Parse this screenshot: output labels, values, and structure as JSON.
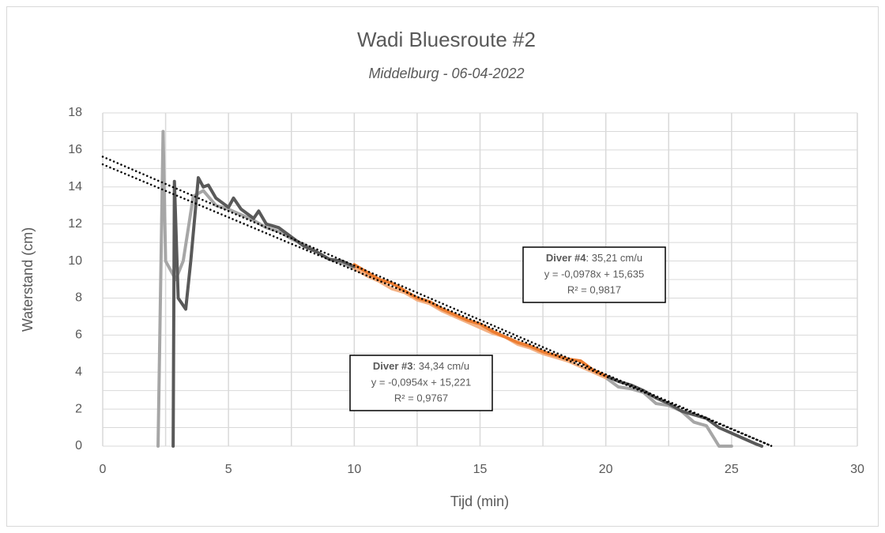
{
  "chart_data": {
    "type": "line",
    "title": "Wadi Bluesroute #2",
    "subtitle": "Middelburg - 06-04-2022",
    "x_label": "Tijd (min)",
    "y_label": "Waterstand (cm)",
    "xlim": [
      0,
      30
    ],
    "xticks": [
      0,
      5,
      10,
      15,
      20,
      25,
      30
    ],
    "ylim": [
      0,
      18
    ],
    "yticks": [
      0,
      2,
      4,
      6,
      8,
      10,
      12,
      14,
      16,
      18
    ],
    "xgrid": [
      0,
      2.5,
      5,
      7.5,
      10,
      12.5,
      15,
      17.5,
      20,
      22.5,
      25,
      27.5,
      30
    ],
    "ygrid": [
      0,
      1,
      2,
      3,
      4,
      5,
      6,
      7,
      8,
      9,
      10,
      11,
      12,
      13,
      14,
      15,
      16,
      17,
      18
    ],
    "grid": true,
    "series": [
      {
        "color": "#a6a6a6",
        "x": [
          2.2,
          2.4,
          2.5,
          2.9,
          3.2,
          3.6,
          4.0,
          4.5,
          5.0,
          5.5,
          6,
          6.5,
          7,
          7.5,
          8,
          8.5,
          9,
          9.5,
          10
        ],
        "values": [
          0,
          17,
          10,
          9,
          10,
          13.5,
          13.8,
          13,
          12.8,
          12.5,
          12.2,
          11.8,
          11.6,
          11.2,
          10.9,
          10.5,
          10.1,
          9.9,
          9.6
        ]
      },
      {
        "color": "#a6a6a6",
        "x": [
          20,
          20.5,
          21,
          21.5,
          22,
          22.5,
          23,
          23.5,
          24,
          24.5,
          25
        ],
        "values": [
          3.7,
          3.2,
          3.1,
          2.9,
          2.3,
          2.2,
          1.9,
          1.3,
          1.1,
          0,
          0
        ]
      },
      {
        "color": "#f4b183",
        "x": [
          10,
          10.5,
          11,
          11.5,
          12,
          12.5,
          13,
          13.5,
          14,
          14.5,
          15,
          15.5,
          16,
          16.5,
          17,
          17.5,
          18,
          18.5,
          19,
          19.5,
          20
        ],
        "values": [
          9.6,
          9.2,
          8.9,
          8.5,
          8.3,
          7.9,
          7.7,
          7.3,
          7.0,
          6.7,
          6.4,
          6.1,
          5.9,
          5.5,
          5.3,
          5.0,
          4.8,
          4.6,
          4.3,
          4.0,
          3.7
        ]
      },
      {
        "color": "#595959",
        "x": [
          2.8,
          2.85,
          3.0,
          3.3,
          3.5,
          3.8,
          4.0,
          4.2,
          4.5,
          5.0,
          5.2,
          5.5,
          6,
          6.2,
          6.5,
          7,
          7.5,
          8,
          8.5,
          9,
          9.5,
          10
        ],
        "values": [
          0,
          14.3,
          8,
          7.4,
          10,
          14.5,
          14,
          14.1,
          13.4,
          12.9,
          13.4,
          12.8,
          12.3,
          12.7,
          12.0,
          11.8,
          11.3,
          10.8,
          10.5,
          10.1,
          10.0,
          9.7
        ]
      },
      {
        "color": "#595959",
        "x": [
          20,
          20.5,
          21,
          21.5,
          22,
          22.5,
          23,
          23.5,
          24,
          24.5,
          25,
          25.5,
          26,
          26.2
        ],
        "values": [
          3.8,
          3.5,
          3.3,
          3.0,
          2.6,
          2.3,
          1.9,
          1.7,
          1.5,
          1.0,
          0.7,
          0.4,
          0.1,
          0
        ]
      },
      {
        "color": "#ed7d31",
        "x": [
          10,
          10.5,
          11,
          11.5,
          12,
          12.5,
          13,
          13.5,
          14,
          14.5,
          15,
          15.5,
          16,
          16.5,
          17,
          17.5,
          18,
          18.5,
          19,
          19.5,
          20
        ],
        "values": [
          9.8,
          9.4,
          9.0,
          8.8,
          8.4,
          8.0,
          7.8,
          7.4,
          7.1,
          6.8,
          6.6,
          6.2,
          5.9,
          5.6,
          5.4,
          5.1,
          4.9,
          4.7,
          4.6,
          4.1,
          3.8
        ]
      },
      {
        "color": "#000000",
        "dash": "dotted",
        "x": [
          0,
          26.6
        ],
        "values": [
          15.221,
          0
        ]
      },
      {
        "color": "#000000",
        "dash": "dotted",
        "x": [
          0,
          26.6
        ],
        "values": [
          15.635,
          0
        ]
      }
    ],
    "annotations": [
      {
        "label": "Diver #4",
        "text": ": 35,21 cm/u",
        "equation": "y = -0,0978x + 15,635",
        "r2": "R² = 0,9817"
      },
      {
        "label": "Diver #3",
        "text": ": 34,34 cm/u",
        "equation": "y = -0,0954x + 15,221",
        "r2": "R² = 0,9767"
      }
    ]
  }
}
